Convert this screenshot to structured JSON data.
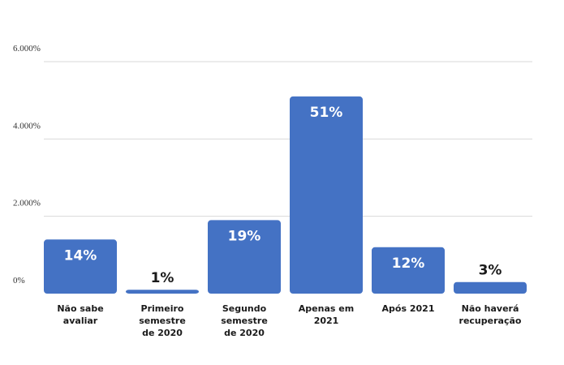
{
  "chart_data": {
    "type": "bar",
    "title": "",
    "xlabel": "",
    "ylabel": "",
    "y_ticks": [
      "0%",
      "2.000%",
      "4.000%",
      "6.000%"
    ],
    "ylim": [
      0,
      6000
    ],
    "grid": true,
    "categories": [
      [
        "Não sabe",
        "avaliar"
      ],
      [
        "Primeiro",
        "semestre",
        "de 2020"
      ],
      [
        "Segundo",
        "semestre",
        "de 2020"
      ],
      [
        "Apenas em",
        "2021"
      ],
      [
        "Após 2021"
      ],
      [
        "Não haverá",
        "recuperação"
      ]
    ],
    "values": [
      1400,
      100,
      1900,
      5100,
      1200,
      300
    ],
    "data_labels": [
      "14%",
      "1%",
      "19%",
      "51%",
      "12%",
      "3%"
    ],
    "bar_color": "#4472C4",
    "label_color_inside": "#ffffff",
    "label_color_outside": "#1a1a1a"
  }
}
